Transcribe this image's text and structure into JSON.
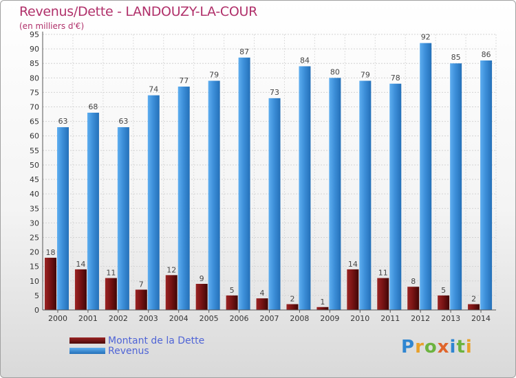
{
  "title": "Revenus/Dette - LANDOUZY-LA-COUR",
  "subtitle": "(en milliers d'€)",
  "logo": {
    "text": "Proxiti",
    "letters": [
      "P",
      "r",
      "o",
      "x",
      "i",
      "t",
      "i"
    ]
  },
  "colors": {
    "dette": "#7a1414",
    "revenus": "#3d8fd9",
    "title": "#b0306a",
    "legend_text": "#4f64d6"
  },
  "chart_data": {
    "type": "bar",
    "categories": [
      "2000",
      "2001",
      "2002",
      "2003",
      "2004",
      "2005",
      "2006",
      "2007",
      "2008",
      "2009",
      "2010",
      "2011",
      "2012",
      "2013",
      "2014"
    ],
    "series": [
      {
        "name": "Montant de la Dette",
        "values": [
          18,
          14,
          11,
          7,
          12,
          9,
          5,
          4,
          2,
          1,
          14,
          11,
          8,
          5,
          2
        ]
      },
      {
        "name": "Revenus",
        "values": [
          63,
          68,
          63,
          74,
          77,
          79,
          87,
          73,
          84,
          80,
          79,
          78,
          92,
          85,
          86
        ]
      }
    ],
    "ylim": [
      0,
      95
    ],
    "yticks": [
      0,
      5,
      10,
      15,
      20,
      25,
      30,
      35,
      40,
      45,
      50,
      55,
      60,
      65,
      70,
      75,
      80,
      85,
      90,
      95
    ],
    "grid": true,
    "legend_position": "bottom-left"
  }
}
